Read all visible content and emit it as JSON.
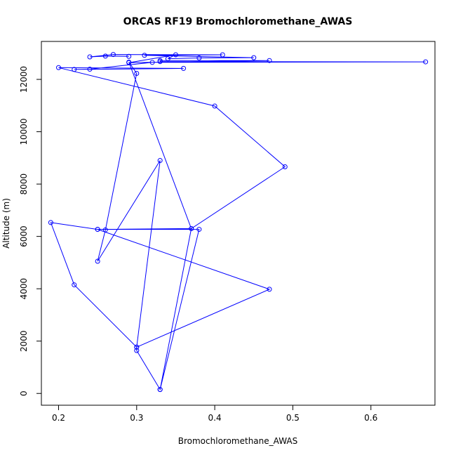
{
  "chart_data": {
    "type": "line",
    "title": "ORCAS RF19 Bromochloromethane_AWAS",
    "xlabel": "Bromochloromethane_AWAS",
    "ylabel": "Altitude (m)",
    "xlim": [
      0.178,
      0.682
    ],
    "ylim": [
      -450,
      13450
    ],
    "xticks": [
      0.2,
      0.3,
      0.4,
      0.5,
      0.6
    ],
    "xtick_labels": [
      "0.2",
      "0.3",
      "0.4",
      "0.5",
      "0.6"
    ],
    "yticks": [
      0,
      2000,
      4000,
      6000,
      8000,
      10000,
      12000
    ],
    "ytick_labels": [
      "0",
      "2000",
      "4000",
      "6000",
      "8000",
      "10000",
      "12000"
    ],
    "grid": false,
    "legend": "none",
    "series_color": "#0000ff",
    "marker": "open-circle",
    "series": [
      {
        "x": [
          0.33,
          0.37,
          0.25,
          0.38,
          0.33,
          0.3,
          0.3,
          0.47,
          0.25,
          0.19,
          0.22,
          0.3,
          0.33,
          0.25,
          0.26,
          0.3,
          0.29,
          0.37,
          0.49,
          0.4,
          0.2,
          0.36,
          0.22,
          0.24,
          0.32,
          0.67,
          0.33,
          0.33,
          0.47,
          0.29,
          0.35,
          0.34,
          0.38,
          0.45,
          0.31,
          0.41,
          0.27,
          0.24,
          0.26,
          0.29
        ],
        "y": [
          150,
          6300,
          6270,
          6270,
          150,
          1640,
          1770,
          3980,
          6270,
          6530,
          4150,
          1770,
          8900,
          5050,
          6250,
          12230,
          12660,
          6300,
          8660,
          10980,
          12450,
          12420,
          12380,
          12390,
          12650,
          12670,
          12680,
          12720,
          12720,
          12640,
          12940,
          12790,
          12820,
          12830,
          12920,
          12940,
          12950,
          12860,
          12890,
          12880
        ]
      }
    ]
  }
}
